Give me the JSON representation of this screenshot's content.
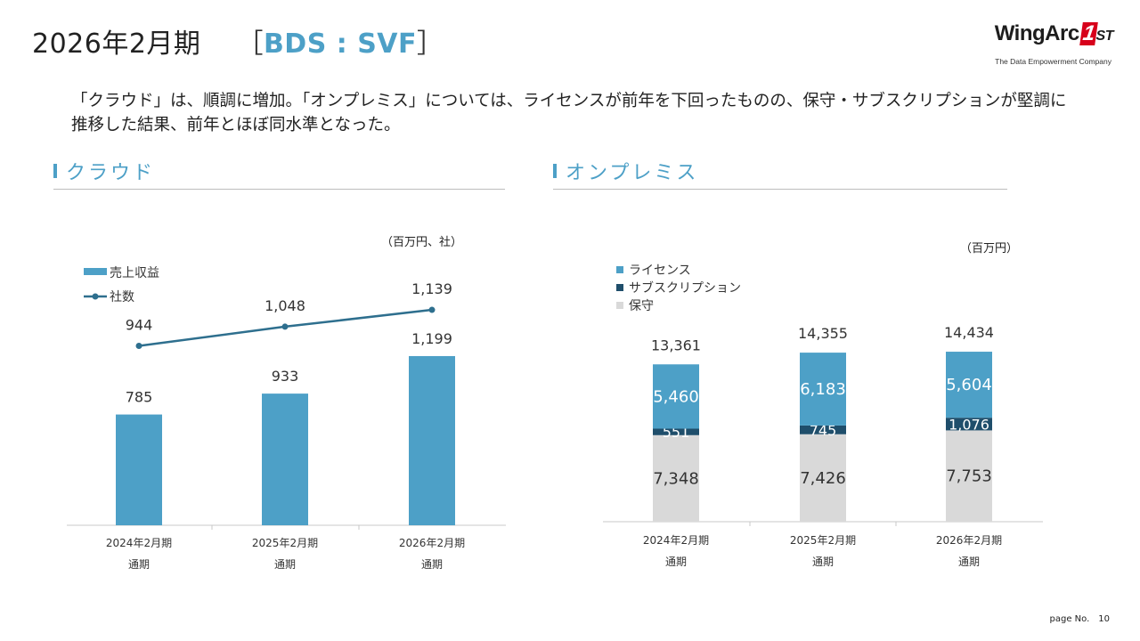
{
  "title": {
    "main": "2026年2月期",
    "bracket_open": "［",
    "accent": "BDS : SVF",
    "bracket_close": "］"
  },
  "logo": {
    "brand_text": "WingArc",
    "brand_number": "1",
    "brand_suffix": "ST",
    "tagline": "The Data Empowerment Company"
  },
  "summary": "「クラウド」は、順調に増加。「オンプレミス」については、ライセンスが前年を下回ったものの、保守・サブスクリプションが堅調に推移した結果、前年とほぼ同水準となった。",
  "sections": {
    "cloud": "クラウド",
    "onprem": "オンプレミス"
  },
  "page": {
    "label": "page No.",
    "number": "10"
  },
  "colors": {
    "accent": "#4da0c7",
    "bar_blue": "#4da0c7",
    "line_dark": "#2e6f8e",
    "navy": "#1f4e6b",
    "gray": "#d9d9d9"
  },
  "chart_data": [
    {
      "id": "cloud",
      "type": "bar+line",
      "unit_label": "（百万円、社）",
      "categories": [
        [
          "2024年2月期",
          "通期"
        ],
        [
          "2025年2月期",
          "通期"
        ],
        [
          "2026年2月期",
          "通期"
        ]
      ],
      "series": [
        {
          "name": "売上収益",
          "kind": "bar",
          "values": [
            785,
            933,
            1199
          ],
          "labels": [
            "785",
            "933",
            "1,199"
          ]
        },
        {
          "name": "社数",
          "kind": "line",
          "values": [
            944,
            1048,
            1139
          ],
          "labels": [
            "944",
            "1,048",
            "1,139"
          ]
        }
      ],
      "legend_position": "top-left"
    },
    {
      "id": "onprem",
      "type": "stacked-bar",
      "unit_label": "（百万円）",
      "categories": [
        [
          "2024年2月期",
          "通期"
        ],
        [
          "2025年2月期",
          "通期"
        ],
        [
          "2026年2月期",
          "通期"
        ]
      ],
      "series": [
        {
          "name": "保守",
          "values": [
            7348,
            7426,
            7753
          ],
          "labels": [
            "7,348",
            "7,426",
            "7,753"
          ]
        },
        {
          "name": "サブスクリプション",
          "values": [
            551,
            745,
            1076
          ],
          "labels": [
            "551",
            "745",
            "1,076"
          ]
        },
        {
          "name": "ライセンス",
          "values": [
            5460,
            6183,
            5604
          ],
          "labels": [
            "5,460",
            "6,183",
            "5,604"
          ]
        }
      ],
      "totals": [
        13361,
        14355,
        14434
      ],
      "total_labels": [
        "13,361",
        "14,355",
        "14,434"
      ],
      "legend_order": [
        "ライセンス",
        "サブスクリプション",
        "保守"
      ],
      "legend_position": "top-left"
    }
  ]
}
